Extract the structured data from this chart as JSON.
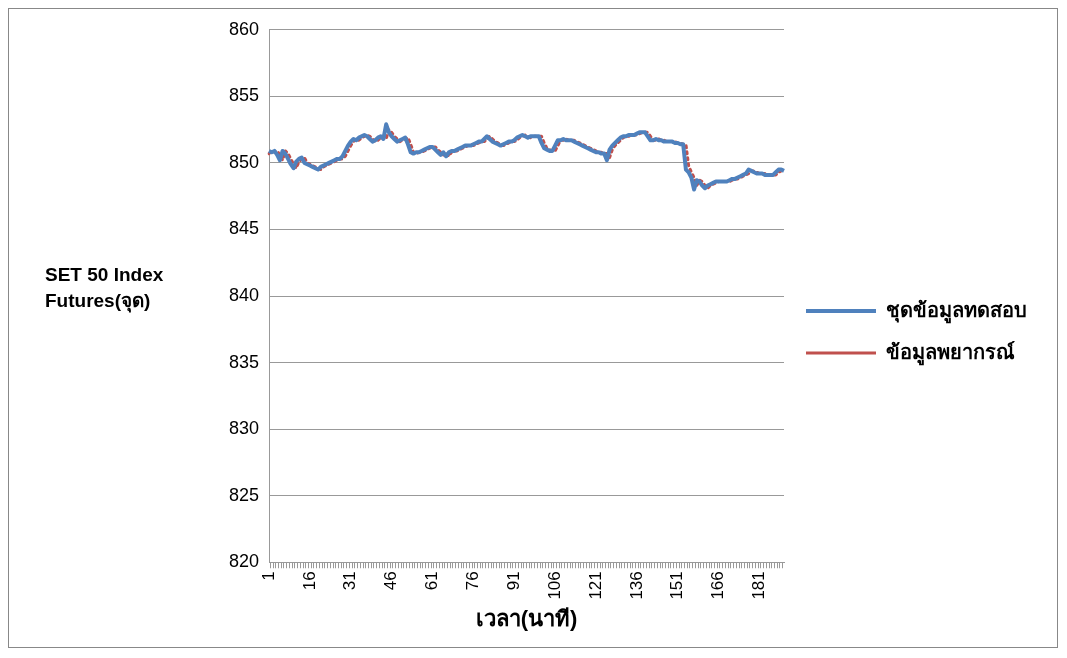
{
  "chart_data": {
    "type": "line",
    "xlabel": "เวลา(นาที)",
    "ylabel": "SET 50 Index Futures(จุด)",
    "categories": [
      "1",
      null,
      null,
      null,
      null,
      null,
      null,
      null,
      null,
      null,
      null,
      null,
      null,
      null,
      null,
      "16",
      null,
      null,
      null,
      null,
      null,
      null,
      null,
      null,
      null,
      null,
      null,
      null,
      null,
      null,
      "31",
      null,
      null,
      null,
      null,
      null,
      null,
      null,
      null,
      null,
      null,
      null,
      null,
      null,
      null,
      "46",
      null,
      null,
      null,
      null,
      null,
      null,
      null,
      null,
      null,
      null,
      null,
      null,
      null,
      null,
      "61",
      null,
      null,
      null,
      null,
      null,
      null,
      null,
      null,
      null,
      null,
      null,
      null,
      null,
      null,
      "76",
      null,
      null,
      null,
      null,
      null,
      null,
      null,
      null,
      null,
      null,
      null,
      null,
      null,
      null,
      "91",
      null,
      null,
      null,
      null,
      null,
      null,
      null,
      null,
      null,
      null,
      null,
      null,
      null,
      null,
      "106",
      null,
      null,
      null,
      null,
      null,
      null,
      null,
      null,
      null,
      null,
      null,
      null,
      null,
      null,
      "121",
      null,
      null,
      null,
      null,
      null,
      null,
      null,
      null,
      null,
      null,
      null,
      null,
      null,
      null,
      "136",
      null,
      null,
      null,
      null,
      null,
      null,
      null,
      null,
      null,
      null,
      null,
      null,
      null,
      null,
      "151",
      null,
      null,
      null,
      null,
      null,
      null,
      null,
      null,
      null,
      null,
      null,
      null,
      null,
      null,
      "166",
      null,
      null,
      null,
      null,
      null,
      null,
      null,
      null,
      null,
      null,
      null,
      null,
      null,
      null,
      "181",
      null,
      null,
      null,
      null,
      null,
      null,
      null,
      null,
      null
    ],
    "series": [
      {
        "name": "ชุดข้อมูลทดสอบ",
        "color": "#4f81bd",
        "line_style": "solid",
        "values": [
          850.9,
          850.8,
          850.9,
          850.6,
          850.2,
          850.9,
          850.7,
          850.3,
          849.9,
          849.6,
          850.1,
          850.3,
          850.4,
          850.0,
          849.9,
          849.8,
          849.7,
          849.6,
          849.5,
          849.7,
          849.8,
          849.9,
          850.0,
          850.1,
          850.2,
          850.3,
          850.3,
          850.5,
          850.9,
          851.3,
          851.6,
          851.8,
          851.7,
          851.9,
          852.0,
          852.1,
          852.0,
          851.8,
          851.6,
          851.7,
          851.9,
          852.0,
          851.8,
          852.9,
          852.3,
          852.0,
          851.8,
          851.6,
          851.7,
          851.8,
          851.9,
          851.4,
          850.8,
          850.7,
          850.8,
          850.8,
          850.9,
          851.0,
          851.1,
          851.2,
          851.2,
          851.0,
          850.8,
          850.6,
          850.8,
          850.5,
          850.8,
          850.9,
          850.9,
          851.0,
          851.1,
          851.2,
          851.3,
          851.3,
          851.3,
          851.4,
          851.5,
          851.6,
          851.6,
          851.8,
          852.0,
          851.8,
          851.6,
          851.5,
          851.4,
          851.3,
          851.4,
          851.5,
          851.6,
          851.6,
          851.7,
          851.9,
          852.0,
          852.1,
          852.0,
          851.9,
          852.0,
          852.0,
          852.0,
          852.0,
          851.5,
          851.1,
          851.0,
          850.9,
          850.9,
          851.3,
          851.7,
          851.7,
          851.8,
          851.7,
          851.7,
          851.7,
          851.6,
          851.5,
          851.4,
          851.3,
          851.2,
          851.1,
          851.0,
          850.9,
          850.8,
          850.8,
          850.7,
          850.7,
          850.2,
          851.0,
          851.3,
          851.5,
          851.7,
          851.9,
          852.0,
          852.0,
          852.1,
          852.1,
          852.1,
          852.2,
          852.3,
          852.3,
          852.3,
          852.0,
          851.7,
          851.7,
          851.8,
          851.7,
          851.7,
          851.6,
          851.6,
          851.6,
          851.6,
          851.5,
          851.5,
          851.4,
          851.4,
          849.5,
          849.3,
          848.9,
          848.0,
          848.7,
          848.6,
          848.3,
          848.1,
          848.3,
          848.4,
          848.5,
          848.6,
          848.6,
          848.6,
          848.6,
          848.6,
          848.7,
          848.8,
          848.8,
          848.9,
          849.0,
          849.1,
          849.2,
          849.5,
          849.4,
          849.3,
          849.2,
          849.2,
          849.2,
          849.1,
          849.1,
          849.1,
          849.1,
          849.3,
          849.5,
          849.5,
          849.4
        ]
      },
      {
        "name": "ข้อมูลพยากรณ์",
        "color": "#c0504d",
        "line_style": "dotted",
        "values": [
          850.7,
          850.9,
          850.8,
          850.9,
          850.6,
          850.2,
          850.9,
          850.7,
          850.3,
          849.9,
          849.6,
          850.1,
          850.3,
          850.4,
          850.0,
          849.9,
          849.8,
          849.7,
          849.6,
          849.5,
          849.7,
          849.8,
          849.9,
          850.0,
          850.1,
          850.2,
          850.3,
          850.3,
          850.5,
          850.9,
          851.3,
          851.6,
          851.8,
          851.7,
          851.9,
          852.0,
          852.1,
          852.0,
          851.8,
          851.6,
          851.7,
          851.9,
          852.0,
          851.8,
          852.5,
          852.3,
          852.0,
          851.8,
          851.6,
          851.7,
          851.8,
          851.9,
          851.4,
          850.8,
          850.7,
          850.8,
          850.8,
          850.9,
          851.0,
          851.1,
          851.2,
          851.2,
          851.0,
          850.8,
          850.6,
          850.8,
          850.5,
          850.8,
          850.9,
          850.9,
          851.0,
          851.1,
          851.2,
          851.3,
          851.3,
          851.3,
          851.4,
          851.5,
          851.6,
          851.6,
          851.8,
          852.0,
          851.8,
          851.6,
          851.5,
          851.4,
          851.3,
          851.4,
          851.5,
          851.6,
          851.6,
          851.7,
          851.9,
          852.0,
          852.1,
          852.0,
          851.9,
          852.0,
          852.0,
          852.0,
          852.0,
          851.5,
          851.1,
          851.0,
          850.9,
          850.9,
          851.3,
          851.7,
          851.7,
          851.8,
          851.7,
          851.7,
          851.7,
          851.6,
          851.5,
          851.4,
          851.3,
          851.2,
          851.1,
          851.0,
          850.9,
          850.8,
          850.8,
          850.7,
          850.7,
          850.4,
          851.0,
          851.3,
          851.5,
          851.7,
          851.9,
          852.0,
          852.0,
          852.1,
          852.1,
          852.1,
          852.2,
          852.3,
          852.3,
          852.3,
          852.0,
          851.7,
          851.7,
          851.8,
          851.7,
          851.7,
          851.6,
          851.6,
          851.6,
          851.6,
          851.5,
          851.5,
          851.4,
          851.4,
          849.8,
          849.3,
          848.9,
          848.3,
          848.7,
          848.6,
          848.3,
          848.1,
          848.3,
          848.4,
          848.5,
          848.6,
          848.6,
          848.6,
          848.6,
          848.6,
          848.7,
          848.8,
          848.8,
          848.9,
          849.0,
          849.1,
          849.2,
          849.4,
          849.4,
          849.3,
          849.2,
          849.2,
          849.2,
          849.1,
          849.1,
          849.1,
          849.1,
          849.3,
          849.4,
          849.5
        ]
      }
    ],
    "ylim": [
      820,
      860
    ],
    "yticks": [
      820,
      825,
      830,
      835,
      840,
      845,
      850,
      855,
      860
    ],
    "grid": "y",
    "legend": "right",
    "marker": "none"
  }
}
